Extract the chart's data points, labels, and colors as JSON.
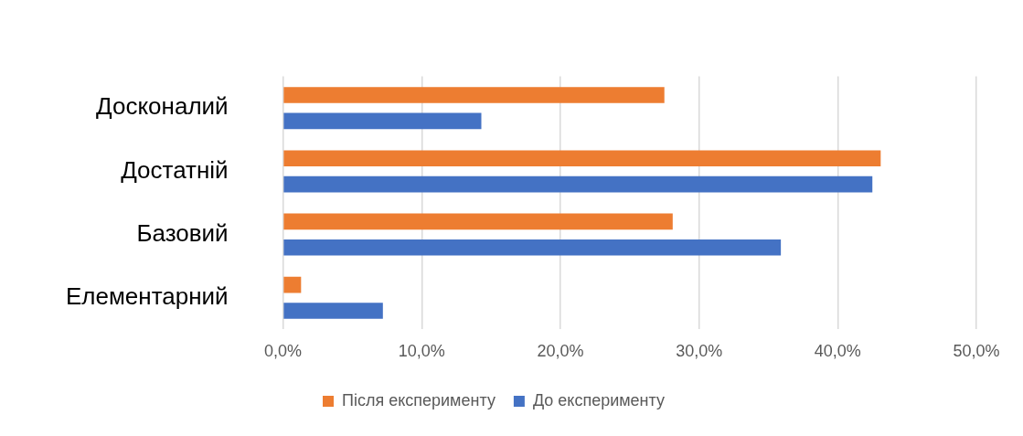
{
  "chart_data": {
    "type": "bar",
    "orientation": "horizontal",
    "categories": [
      "Досконалий",
      "Достатній",
      "Базовий",
      "Елементарний"
    ],
    "series": [
      {
        "name": "Після експерименту",
        "color": "#ed7d31",
        "values": [
          27.5,
          43.1,
          28.1,
          1.3
        ]
      },
      {
        "name": "До експерименту",
        "color": "#4472c4",
        "values": [
          14.3,
          42.5,
          35.9,
          7.2
        ]
      }
    ],
    "xlim": [
      0,
      50
    ],
    "xticks": [
      {
        "value": 0,
        "label": "0,0%"
      },
      {
        "value": 10,
        "label": "10,0%"
      },
      {
        "value": 20,
        "label": "20,0%"
      },
      {
        "value": 30,
        "label": "30,0%"
      },
      {
        "value": 40,
        "label": "40,0%"
      },
      {
        "value": 50,
        "label": "50,0%"
      }
    ],
    "grid": "x",
    "legend": "bottom"
  }
}
